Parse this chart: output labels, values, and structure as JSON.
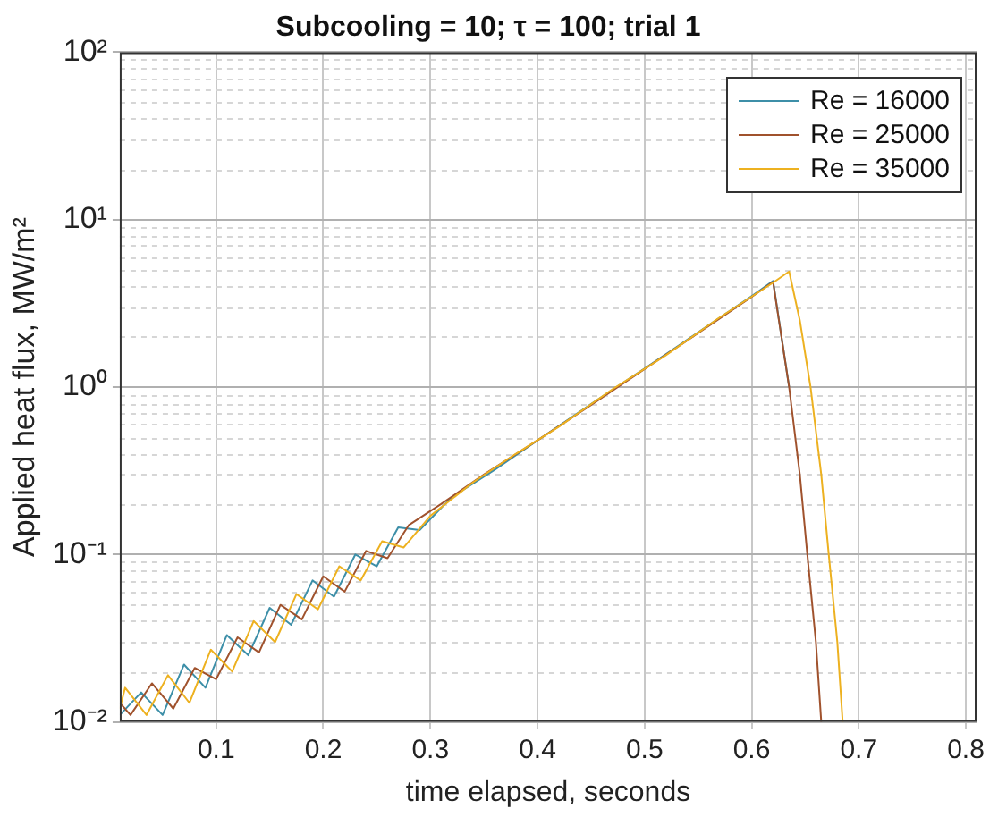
{
  "chart_data": {
    "type": "line",
    "title": "Subcooling = 10; τ = 100; trial 1",
    "xlabel": "time elapsed, seconds",
    "ylabel": "Applied heat flux, MW/m²",
    "log": "y",
    "grid": true,
    "legend": "top right",
    "marker": "none",
    "line_style": "solid",
    "xlim": [
      0.01,
      0.81
    ],
    "xticks": [
      0.1,
      0.2,
      0.3,
      0.4,
      0.5,
      0.6,
      0.7,
      0.8
    ],
    "ylim": [
      0.01,
      100
    ],
    "yticks": [
      {
        "value": 0.01,
        "label": "10⁻²"
      },
      {
        "value": 0.1,
        "label": "10⁻¹"
      },
      {
        "value": 1,
        "label": "10⁰"
      },
      {
        "value": 10,
        "label": "10¹"
      },
      {
        "value": 100,
        "label": "10²"
      }
    ],
    "series": [
      {
        "name": "Re = 16000",
        "color": "#3d8fa8",
        "x": [
          0.01,
          0.03,
          0.05,
          0.07,
          0.09,
          0.11,
          0.13,
          0.15,
          0.17,
          0.19,
          0.21,
          0.23,
          0.25,
          0.27,
          0.29,
          0.32,
          0.36,
          0.4,
          0.45,
          0.5,
          0.55,
          0.6,
          0.62,
          0.635
        ],
        "values": [
          0.011,
          0.015,
          0.011,
          0.022,
          0.016,
          0.033,
          0.025,
          0.048,
          0.038,
          0.07,
          0.056,
          0.1,
          0.085,
          0.145,
          0.14,
          0.22,
          0.32,
          0.48,
          0.79,
          1.29,
          2.12,
          3.49,
          4.3,
          1.0
        ]
      },
      {
        "name": "Re = 25000",
        "color": "#a0522d",
        "x": [
          0.01,
          0.02,
          0.04,
          0.06,
          0.08,
          0.1,
          0.12,
          0.14,
          0.16,
          0.18,
          0.2,
          0.22,
          0.24,
          0.26,
          0.28,
          0.31,
          0.35,
          0.4,
          0.45,
          0.5,
          0.55,
          0.6,
          0.62,
          0.635,
          0.645,
          0.652,
          0.66,
          0.665
        ],
        "values": [
          0.013,
          0.011,
          0.017,
          0.012,
          0.021,
          0.018,
          0.032,
          0.026,
          0.05,
          0.041,
          0.074,
          0.06,
          0.105,
          0.095,
          0.15,
          0.2,
          0.3,
          0.48,
          0.78,
          1.28,
          2.1,
          3.45,
          4.25,
          1.0,
          0.3,
          0.1,
          0.03,
          0.01
        ]
      },
      {
        "name": "Re = 35000",
        "color": "#edb120",
        "x": [
          0.01,
          0.015,
          0.035,
          0.055,
          0.075,
          0.095,
          0.115,
          0.135,
          0.155,
          0.175,
          0.195,
          0.215,
          0.235,
          0.255,
          0.275,
          0.3,
          0.34,
          0.38,
          0.42,
          0.47,
          0.52,
          0.57,
          0.62,
          0.635,
          0.645,
          0.655,
          0.665,
          0.672,
          0.68,
          0.685
        ],
        "values": [
          0.012,
          0.016,
          0.011,
          0.019,
          0.013,
          0.027,
          0.02,
          0.04,
          0.03,
          0.058,
          0.047,
          0.085,
          0.07,
          0.12,
          0.11,
          0.17,
          0.27,
          0.4,
          0.58,
          0.97,
          1.55,
          2.6,
          4.2,
          4.9,
          2.5,
          1.0,
          0.3,
          0.1,
          0.03,
          0.01
        ]
      }
    ]
  }
}
